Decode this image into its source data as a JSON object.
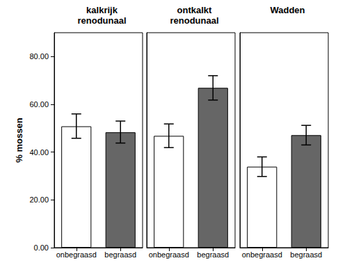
{
  "chart_data": [
    {
      "type": "bar",
      "title": "kalkrijk\nrenodunaal",
      "y_label": "% mossen",
      "categories": [
        "onbegraasd",
        "begraasd"
      ],
      "values": [
        50.8,
        48.3
      ],
      "error_low": [
        45.8,
        43.8
      ],
      "error_high": [
        56.0,
        53.0
      ],
      "colors": [
        "#ffffff",
        "#666666"
      ],
      "ylim": [
        0,
        90
      ],
      "yticks": [
        {
          "value": 0,
          "label": "0.00"
        },
        {
          "value": 20,
          "label": "20.00"
        },
        {
          "value": 40,
          "label": "40.00"
        },
        {
          "value": 60,
          "label": "60.00"
        },
        {
          "value": 80,
          "label": "80.00"
        }
      ],
      "grid": false
    },
    {
      "type": "bar",
      "title": "ontkalkt\nrenodunaal",
      "categories": [
        "onbegraasd",
        "begraasd"
      ],
      "values": [
        46.8,
        66.9
      ],
      "error_low": [
        41.9,
        61.8
      ],
      "error_high": [
        51.8,
        72.0
      ],
      "colors": [
        "#ffffff",
        "#666666"
      ],
      "ylim": [
        0,
        90
      ],
      "yticks": [
        {
          "value": 0,
          "label": "0.00"
        },
        {
          "value": 20,
          "label": "20.00"
        },
        {
          "value": 40,
          "label": "40.00"
        },
        {
          "value": 60,
          "label": "60.00"
        },
        {
          "value": 80,
          "label": "80.00"
        }
      ],
      "grid": false,
      "tick_labels": "x"
    },
    {
      "type": "bar",
      "title": "Wadden",
      "categories": [
        "onbegraasd",
        "begraasd"
      ],
      "values": [
        33.9,
        47.1
      ],
      "error_low": [
        29.8,
        43.0
      ],
      "error_high": [
        38.0,
        51.2
      ],
      "colors": [
        "#ffffff",
        "#666666"
      ],
      "ylim": [
        0,
        90
      ],
      "yticks": [
        {
          "value": 0,
          "label": "0.00"
        },
        {
          "value": 20,
          "label": "20.00"
        },
        {
          "value": 40,
          "label": "40.00"
        },
        {
          "value": 60,
          "label": "60.00"
        },
        {
          "value": 80,
          "label": "80.00"
        }
      ],
      "grid": false,
      "tick_labels": "x"
    }
  ]
}
